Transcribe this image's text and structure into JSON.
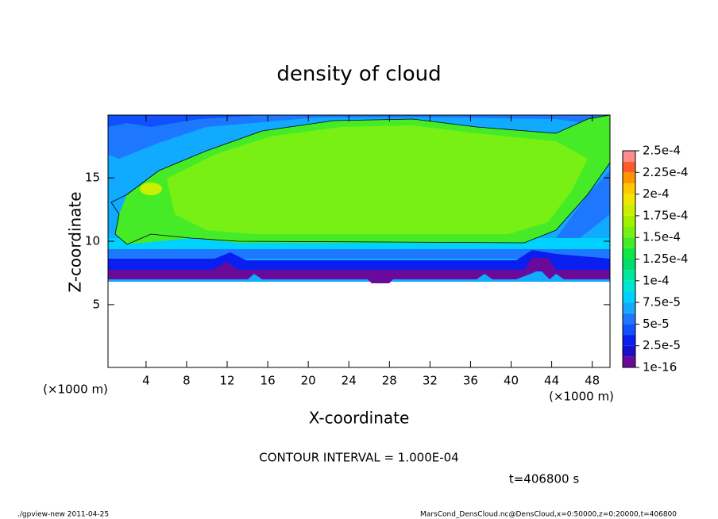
{
  "chart_data": {
    "type": "contour",
    "title": "density of cloud",
    "x_label": "X-coordinate",
    "y_label": "Z-coordinate",
    "x_unit": "(×1000 m)",
    "y_unit": "(×1000 m)",
    "xlim": [
      0.25,
      49.75
    ],
    "xticks": [
      4,
      8,
      12,
      16,
      20,
      24,
      28,
      32,
      36,
      40,
      44,
      48
    ],
    "ylim": [
      0.05,
      19.95
    ],
    "yticks": [
      5,
      10,
      15
    ],
    "colorbar": {
      "levels": [
        {
          "value": 1e-16,
          "label": "1e-16"
        },
        {
          "value": 2.5e-05,
          "label": "2.5e-5"
        },
        {
          "value": 5e-05,
          "label": "5e-5"
        },
        {
          "value": 7.5e-05,
          "label": "7.5e-5"
        },
        {
          "value": 0.0001,
          "label": "1e-4"
        },
        {
          "value": 0.000125,
          "label": "1.25e-4"
        },
        {
          "value": 0.00015,
          "label": "1.5e-4"
        },
        {
          "value": 0.000175,
          "label": "1.75e-4"
        },
        {
          "value": 0.0002,
          "label": "2e-4"
        },
        {
          "value": 0.000225,
          "label": "2.25e-4"
        },
        {
          "value": 0.00025,
          "label": "2.5e-4"
        }
      ],
      "colors": [
        "#6a0a9a",
        "#1a10c8",
        "#0a1ef0",
        "#1050ff",
        "#1e78ff",
        "#10aaff",
        "#00d2ff",
        "#00e6d2",
        "#00e6a0",
        "#00dc6e",
        "#10e646",
        "#46eb28",
        "#78f014",
        "#a0f000",
        "#c8f000",
        "#f0e600",
        "#ffc800",
        "#ff9600",
        "#ff5a28",
        "#ff8c8c"
      ]
    },
    "contour_interval": "CONTOUR INTERVAL = 1.000E-04",
    "time_label": "t=406800 s",
    "footer_left": "./gpview-new   2011-04-25",
    "footer_right": "MarsCond_DensCloud.nc@DensCloud,x=0:50000,z=0:20000,t=406800"
  }
}
